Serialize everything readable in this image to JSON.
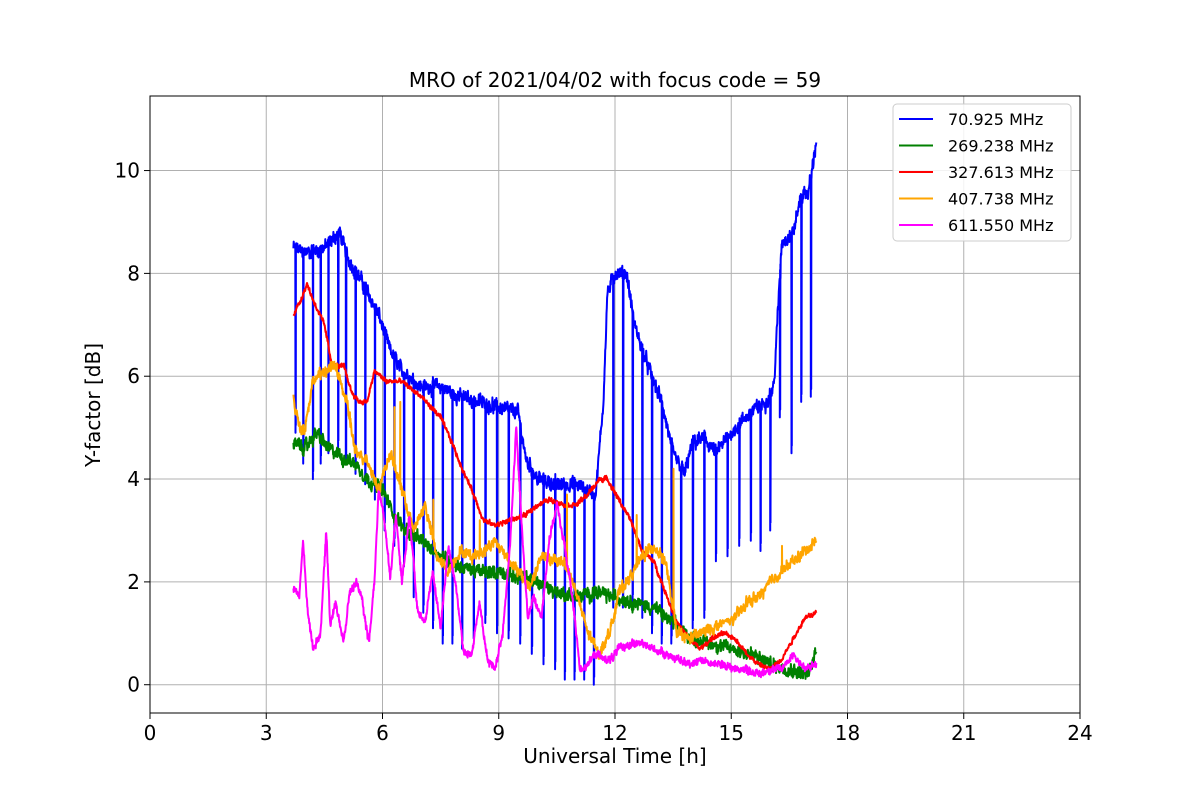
{
  "chart_data": {
    "type": "line",
    "title": "MRO of 2021/04/02 with focus code = 59",
    "xlabel": "Universal Time [h]",
    "ylabel": "Y-factor [dB]",
    "xlim": [
      0,
      24
    ],
    "ylim": [
      -0.55,
      11.45
    ],
    "xticks": [
      0,
      3,
      6,
      9,
      12,
      15,
      18,
      21,
      24
    ],
    "xtick_labels": [
      "0",
      "3",
      "6",
      "9",
      "12",
      "15",
      "18",
      "21",
      "24"
    ],
    "yticks": [
      0,
      2,
      4,
      6,
      8,
      10
    ],
    "ytick_labels": [
      "0",
      "2",
      "4",
      "6",
      "8",
      "10"
    ],
    "grid": true,
    "legend_position": "top-right",
    "series": [
      {
        "name": " 70.925 MHz",
        "color": "#0000ff",
        "base": [
          [
            3.7,
            8.5
          ],
          [
            4.0,
            8.4
          ],
          [
            4.5,
            8.5
          ],
          [
            4.9,
            8.8
          ],
          [
            5.1,
            8.3
          ],
          [
            5.5,
            7.8
          ],
          [
            5.9,
            7.2
          ],
          [
            6.2,
            6.5
          ],
          [
            6.5,
            6.1
          ],
          [
            7.0,
            5.8
          ],
          [
            7.5,
            5.8
          ],
          [
            8.0,
            5.6
          ],
          [
            8.5,
            5.5
          ],
          [
            9.0,
            5.4
          ],
          [
            9.5,
            5.3
          ],
          [
            9.7,
            4.4
          ],
          [
            10.0,
            4.0
          ],
          [
            10.5,
            3.9
          ],
          [
            11.0,
            3.9
          ],
          [
            11.5,
            3.7
          ],
          [
            11.7,
            5.5
          ],
          [
            11.8,
            7.6
          ],
          [
            12.0,
            8.0
          ],
          [
            12.3,
            8.0
          ],
          [
            12.5,
            7.0
          ],
          [
            12.8,
            6.3
          ],
          [
            13.0,
            5.9
          ],
          [
            13.2,
            5.5
          ],
          [
            13.5,
            4.5
          ],
          [
            13.8,
            4.1
          ],
          [
            14.0,
            4.7
          ],
          [
            14.3,
            4.8
          ],
          [
            14.6,
            4.5
          ],
          [
            15.0,
            4.9
          ],
          [
            15.5,
            5.3
          ],
          [
            15.9,
            5.5
          ],
          [
            16.1,
            5.8
          ],
          [
            16.3,
            8.6
          ],
          [
            16.6,
            8.8
          ],
          [
            16.8,
            9.5
          ],
          [
            17.0,
            9.6
          ],
          [
            17.2,
            10.6
          ]
        ],
        "dips": [
          [
            3.75,
            4.9
          ],
          [
            3.95,
            4.3
          ],
          [
            4.2,
            4.0
          ],
          [
            4.4,
            4.3
          ],
          [
            4.6,
            4.5
          ],
          [
            4.85,
            4.6
          ],
          [
            5.05,
            4.3
          ],
          [
            5.3,
            4.1
          ],
          [
            5.55,
            3.9
          ],
          [
            5.8,
            3.6
          ],
          [
            6.05,
            3.0
          ],
          [
            6.3,
            2.7
          ],
          [
            6.55,
            2.3
          ],
          [
            6.8,
            1.7
          ],
          [
            7.05,
            1.4
          ],
          [
            7.3,
            1.1
          ],
          [
            7.55,
            0.8
          ],
          [
            7.8,
            0.8
          ],
          [
            8.05,
            0.7
          ],
          [
            8.35,
            0.9
          ],
          [
            8.65,
            1.2
          ],
          [
            8.95,
            1.0
          ],
          [
            9.25,
            0.9
          ],
          [
            9.55,
            0.8
          ],
          [
            9.85,
            0.6
          ],
          [
            10.15,
            0.4
          ],
          [
            10.45,
            0.3
          ],
          [
            10.7,
            0.1
          ],
          [
            10.95,
            0.1
          ],
          [
            11.2,
            0.1
          ],
          [
            11.45,
            0.0
          ],
          [
            11.95,
            1.5
          ],
          [
            12.2,
            1.5
          ],
          [
            12.45,
            1.6
          ],
          [
            12.7,
            1.3
          ],
          [
            12.95,
            1.0
          ],
          [
            13.2,
            0.8
          ],
          [
            13.45,
            0.8
          ],
          [
            13.7,
            1.0
          ],
          [
            14.0,
            1.1
          ],
          [
            14.3,
            1.3
          ],
          [
            14.6,
            2.4
          ],
          [
            14.9,
            2.5
          ],
          [
            15.2,
            2.7
          ],
          [
            15.5,
            2.8
          ],
          [
            15.75,
            2.6
          ],
          [
            16.0,
            3.0
          ],
          [
            16.25,
            5.2
          ],
          [
            16.55,
            4.5
          ],
          [
            16.8,
            5.5
          ],
          [
            17.05,
            5.6
          ]
        ]
      },
      {
        "name": "269.238 MHz",
        "color": "#008000",
        "base": [
          [
            3.7,
            4.7
          ],
          [
            4.0,
            4.6
          ],
          [
            4.3,
            4.9
          ],
          [
            4.6,
            4.6
          ],
          [
            5.0,
            4.4
          ],
          [
            5.3,
            4.3
          ],
          [
            5.6,
            4.0
          ],
          [
            6.0,
            3.8
          ],
          [
            6.3,
            3.3
          ],
          [
            6.6,
            3.0
          ],
          [
            7.0,
            2.8
          ],
          [
            7.5,
            2.5
          ],
          [
            8.0,
            2.3
          ],
          [
            8.5,
            2.2
          ],
          [
            9.0,
            2.2
          ],
          [
            9.5,
            2.1
          ],
          [
            10.0,
            2.0
          ],
          [
            10.5,
            1.8
          ],
          [
            11.0,
            1.7
          ],
          [
            11.5,
            1.8
          ],
          [
            12.0,
            1.7
          ],
          [
            12.5,
            1.6
          ],
          [
            13.0,
            1.5
          ],
          [
            13.5,
            1.2
          ],
          [
            14.0,
            0.9
          ],
          [
            14.5,
            0.8
          ],
          [
            15.0,
            0.7
          ],
          [
            15.5,
            0.6
          ],
          [
            16.0,
            0.4
          ],
          [
            16.5,
            0.3
          ],
          [
            17.0,
            0.2
          ],
          [
            17.2,
            0.7
          ]
        ]
      },
      {
        "name": "327.613 MHz",
        "color": "#ff0000",
        "base": [
          [
            3.7,
            7.2
          ],
          [
            3.9,
            7.5
          ],
          [
            4.05,
            7.8
          ],
          [
            4.2,
            7.5
          ],
          [
            4.5,
            7.0
          ],
          [
            4.7,
            6.2
          ],
          [
            5.0,
            6.2
          ],
          [
            5.2,
            5.7
          ],
          [
            5.4,
            5.5
          ],
          [
            5.6,
            5.5
          ],
          [
            5.8,
            6.1
          ],
          [
            6.1,
            5.9
          ],
          [
            6.5,
            5.9
          ],
          [
            7.0,
            5.6
          ],
          [
            7.5,
            5.2
          ],
          [
            7.8,
            4.7
          ],
          [
            8.0,
            4.3
          ],
          [
            8.3,
            3.8
          ],
          [
            8.6,
            3.2
          ],
          [
            8.9,
            3.1
          ],
          [
            9.3,
            3.2
          ],
          [
            9.7,
            3.3
          ],
          [
            10.0,
            3.5
          ],
          [
            10.3,
            3.6
          ],
          [
            10.7,
            3.5
          ],
          [
            11.0,
            3.5
          ],
          [
            11.3,
            3.7
          ],
          [
            11.6,
            4.0
          ],
          [
            11.8,
            4.0
          ],
          [
            12.1,
            3.6
          ],
          [
            12.4,
            3.2
          ],
          [
            12.7,
            2.6
          ],
          [
            13.0,
            2.4
          ],
          [
            13.3,
            1.8
          ],
          [
            13.6,
            1.2
          ],
          [
            13.9,
            0.9
          ],
          [
            14.2,
            0.7
          ],
          [
            14.5,
            0.9
          ],
          [
            14.8,
            1.0
          ],
          [
            15.1,
            0.9
          ],
          [
            15.4,
            0.6
          ],
          [
            15.7,
            0.4
          ],
          [
            16.0,
            0.3
          ],
          [
            16.3,
            0.5
          ],
          [
            16.6,
            0.9
          ],
          [
            16.9,
            1.3
          ],
          [
            17.2,
            1.4
          ]
        ]
      },
      {
        "name": "407.738 MHz",
        "color": "#ffa500",
        "base": [
          [
            3.7,
            5.6
          ],
          [
            3.85,
            5.0
          ],
          [
            4.0,
            5.0
          ],
          [
            4.2,
            5.9
          ],
          [
            4.5,
            6.1
          ],
          [
            4.8,
            6.2
          ],
          [
            5.1,
            5.4
          ],
          [
            5.3,
            4.5
          ],
          [
            5.6,
            4.4
          ],
          [
            5.9,
            3.8
          ],
          [
            6.2,
            4.5
          ],
          [
            6.5,
            3.8
          ],
          [
            6.8,
            3.0
          ],
          [
            7.1,
            3.5
          ],
          [
            7.4,
            2.5
          ],
          [
            7.7,
            2.2
          ],
          [
            8.0,
            2.6
          ],
          [
            8.3,
            2.5
          ],
          [
            8.6,
            2.6
          ],
          [
            8.9,
            2.8
          ],
          [
            9.2,
            2.5
          ],
          [
            9.5,
            2.2
          ],
          [
            9.8,
            1.9
          ],
          [
            10.1,
            2.5
          ],
          [
            10.4,
            2.4
          ],
          [
            10.7,
            2.4
          ],
          [
            11.0,
            1.8
          ],
          [
            11.3,
            1.0
          ],
          [
            11.6,
            0.6
          ],
          [
            11.9,
            1.1
          ],
          [
            12.1,
            1.8
          ],
          [
            12.4,
            2.1
          ],
          [
            12.7,
            2.5
          ],
          [
            13.0,
            2.7
          ],
          [
            13.3,
            2.4
          ],
          [
            13.6,
            1.0
          ],
          [
            13.9,
            0.9
          ],
          [
            14.2,
            1.0
          ],
          [
            14.5,
            1.1
          ],
          [
            14.8,
            1.2
          ],
          [
            15.1,
            1.3
          ],
          [
            15.4,
            1.6
          ],
          [
            15.7,
            1.7
          ],
          [
            16.0,
            2.0
          ],
          [
            16.3,
            2.2
          ],
          [
            16.6,
            2.4
          ],
          [
            16.9,
            2.6
          ],
          [
            17.2,
            2.8
          ]
        ],
        "spikes": [
          [
            3.7,
            5.8
          ],
          [
            5.15,
            5.3
          ],
          [
            6.3,
            5.4
          ],
          [
            6.45,
            5.5
          ],
          [
            7.3,
            3.6
          ],
          [
            8.5,
            3.2
          ],
          [
            10.75,
            3.7
          ],
          [
            12.55,
            3.3
          ],
          [
            13.5,
            4.2
          ],
          [
            16.3,
            2.7
          ]
        ]
      },
      {
        "name": "611.550 MHz",
        "color": "#ff00ff",
        "base": [
          [
            3.7,
            1.9
          ],
          [
            3.85,
            1.7
          ],
          [
            3.95,
            2.8
          ],
          [
            4.05,
            1.6
          ],
          [
            4.2,
            0.7
          ],
          [
            4.4,
            1.0
          ],
          [
            4.55,
            3.0
          ],
          [
            4.65,
            1.2
          ],
          [
            4.8,
            1.6
          ],
          [
            5.0,
            0.8
          ],
          [
            5.15,
            1.8
          ],
          [
            5.35,
            2.0
          ],
          [
            5.5,
            1.5
          ],
          [
            5.65,
            0.8
          ],
          [
            5.8,
            2.1
          ],
          [
            5.9,
            3.8
          ],
          [
            6.05,
            3.2
          ],
          [
            6.2,
            2.1
          ],
          [
            6.35,
            3.3
          ],
          [
            6.5,
            2.0
          ],
          [
            6.7,
            3.3
          ],
          [
            6.9,
            1.5
          ],
          [
            7.1,
            1.2
          ],
          [
            7.3,
            2.2
          ],
          [
            7.5,
            1.1
          ],
          [
            7.7,
            2.7
          ],
          [
            7.9,
            1.9
          ],
          [
            8.1,
            0.6
          ],
          [
            8.3,
            0.6
          ],
          [
            8.5,
            1.6
          ],
          [
            8.7,
            0.5
          ],
          [
            8.9,
            0.3
          ],
          [
            9.1,
            1.0
          ],
          [
            9.3,
            2.8
          ],
          [
            9.45,
            5.0
          ],
          [
            9.6,
            3.0
          ],
          [
            9.75,
            1.3
          ],
          [
            9.9,
            1.7
          ],
          [
            10.1,
            1.3
          ],
          [
            10.3,
            2.8
          ],
          [
            10.5,
            3.5
          ],
          [
            10.7,
            2.7
          ],
          [
            10.9,
            1.7
          ],
          [
            11.1,
            0.3
          ],
          [
            11.3,
            0.4
          ],
          [
            11.5,
            0.6
          ],
          [
            11.7,
            0.5
          ],
          [
            11.9,
            0.5
          ],
          [
            12.1,
            0.7
          ],
          [
            12.4,
            0.8
          ],
          [
            12.7,
            0.8
          ],
          [
            13.0,
            0.7
          ],
          [
            13.3,
            0.6
          ],
          [
            13.6,
            0.5
          ],
          [
            13.9,
            0.4
          ],
          [
            14.2,
            0.5
          ],
          [
            14.5,
            0.4
          ],
          [
            14.8,
            0.4
          ],
          [
            15.1,
            0.3
          ],
          [
            15.4,
            0.3
          ],
          [
            15.7,
            0.2
          ],
          [
            16.0,
            0.3
          ],
          [
            16.3,
            0.3
          ],
          [
            16.6,
            0.6
          ],
          [
            16.9,
            0.3
          ],
          [
            17.2,
            0.4
          ]
        ]
      }
    ]
  }
}
